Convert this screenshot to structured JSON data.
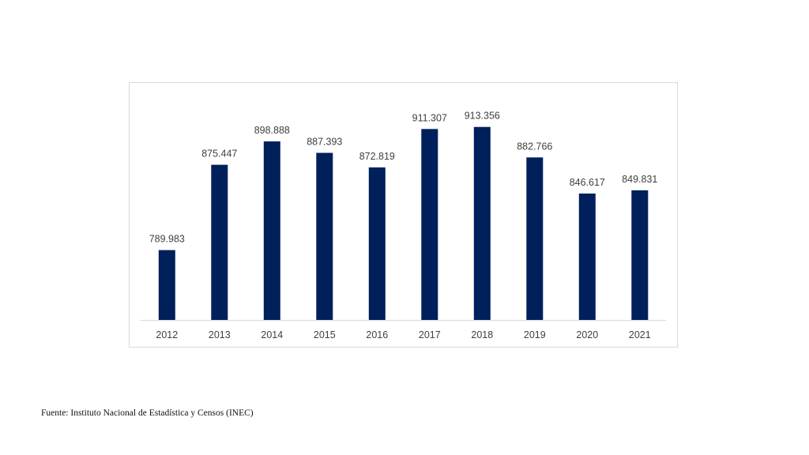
{
  "chart_data": {
    "type": "bar",
    "categories": [
      "2012",
      "2013",
      "2014",
      "2015",
      "2016",
      "2017",
      "2018",
      "2019",
      "2020",
      "2021"
    ],
    "values": [
      789983,
      875447,
      898888,
      887393,
      872819,
      911307,
      913356,
      882766,
      846617,
      849831
    ],
    "data_labels": [
      "789.983",
      "875.447",
      "898.888",
      "887.393",
      "872.819",
      "911.307",
      "913.356",
      "882.766",
      "846.617",
      "849.831"
    ],
    "title": "",
    "xlabel": "",
    "ylabel": "",
    "ylim": [
      720000,
      940000
    ],
    "grid": false,
    "legend": "none",
    "bar_color": "#00205b"
  },
  "footer": {
    "source": "Fuente: Instituto Nacional de Estadística y Censos (INEC)"
  }
}
